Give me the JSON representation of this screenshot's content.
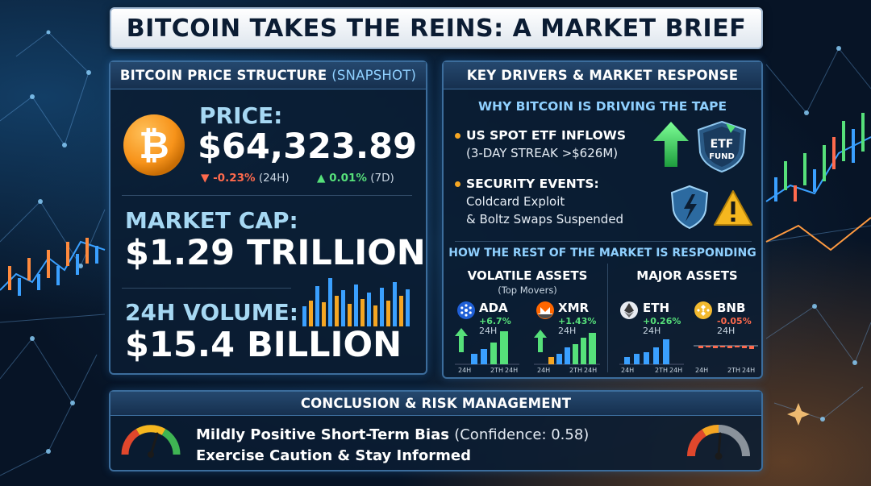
{
  "title": "BITCOIN TAKES THE REINS: A MARKET BRIEF",
  "left_panel": {
    "header": "BITCOIN PRICE STRUCTURE",
    "header_note": "(SNAPSHOT)",
    "price_label": "PRICE:",
    "price_value": "$64,323.89",
    "change_24h": "▼ -0.23%",
    "change_24h_period": "(24H)",
    "change_7d": "▲ 0.01%",
    "change_7d_period": "(7D)",
    "market_cap_label": "MARKET CAP:",
    "market_cap_value": "$1.29 TRILLION",
    "volume_label": "24H VOLUME:",
    "volume_value": "$15.4 BILLION"
  },
  "right_panel": {
    "header": "KEY DRIVERS & MARKET RESPONSE",
    "drivers_heading": "WHY BITCOIN IS DRIVING THE TAPE",
    "driver1_title": "US SPOT ETF INFLOWS",
    "driver1_detail": "(3-DAY STREAK >$626M)",
    "etf_badge_line1": "ETF",
    "etf_badge_line2": "FUND",
    "driver2_title": "SECURITY EVENTS:",
    "driver2_detail1": "Coldcard Exploit",
    "driver2_detail2": "& Boltz Swaps Suspended",
    "response_heading": "HOW THE REST OF THE MARKET IS RESPONDING",
    "volatile_heading": "VOLATILE ASSETS",
    "volatile_sub": "(Top Movers)",
    "major_heading": "MAJOR ASSETS",
    "assets": [
      {
        "symbol": "ADA",
        "change": "+6.7%",
        "period": "24H",
        "color": "#56e07a"
      },
      {
        "symbol": "XMR",
        "change": "+1.43%",
        "period": "24H",
        "color": "#56e07a"
      },
      {
        "symbol": "ETH",
        "change": "+0.26%",
        "period": "24H",
        "color": "#56e07a"
      },
      {
        "symbol": "BNB",
        "change": "-0.05%",
        "period": "24H",
        "color": "#ff6a4d"
      }
    ],
    "axis_labels": {
      "start": "24H",
      "mid": "2TH",
      "end": "24H"
    }
  },
  "bottom_panel": {
    "header": "CONCLUSION & RISK MANAGEMENT",
    "line1_bold": "Mildly Positive Short-Term Bias",
    "line1_note": "(Confidence: 0.58)",
    "line2": "Exercise Caution & Stay Informed",
    "gauge_needle": 0.58
  },
  "icons": {
    "bitcoin": "bitcoin-icon",
    "etf": "etf-fund-icon",
    "shield": "shield-icon",
    "warning": "warning-icon",
    "ada": "cardano-icon",
    "xmr": "monero-icon",
    "eth": "ethereum-icon",
    "bnb": "bnb-icon"
  },
  "colors": {
    "accent_blue": "#a6d8f3",
    "positive": "#56e07a",
    "negative": "#ff6a4d",
    "bitcoin_orange": "#f7931a",
    "bullet_orange": "#f5a623"
  }
}
